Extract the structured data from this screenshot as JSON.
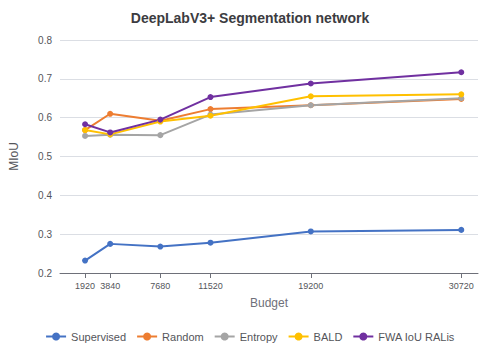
{
  "chart_data": {
    "type": "line",
    "title": "DeepLabV3+ Segmentation network",
    "x_label": "Budget",
    "y_label": "MIoU",
    "x": [
      1920,
      3840,
      7680,
      11520,
      19200,
      30720
    ],
    "series": [
      {
        "name": "Supervised",
        "color": "#4472C4",
        "marker": "circle",
        "values": [
          0.232,
          0.275,
          0.268,
          0.278,
          0.307,
          0.311
        ]
      },
      {
        "name": "Random",
        "color": "#ED7D31",
        "marker": "circle",
        "values": [
          0.568,
          0.61,
          0.592,
          0.622,
          0.632,
          0.648
        ]
      },
      {
        "name": "Entropy",
        "color": "#A5A5A5",
        "marker": "circle",
        "values": [
          0.553,
          0.556,
          0.555,
          0.608,
          0.632,
          0.65
        ]
      },
      {
        "name": "BALD",
        "color": "#FFC000",
        "marker": "circle",
        "values": [
          0.568,
          0.557,
          0.59,
          0.605,
          0.655,
          0.66
        ]
      },
      {
        "name": "FWA IoU RALis",
        "color": "#7030A0",
        "marker": "circle",
        "values": [
          0.583,
          0.562,
          0.595,
          0.653,
          0.688,
          0.717
        ]
      }
    ],
    "xlim": [
      0,
      32000
    ],
    "xticks": [
      1920,
      3840,
      7680,
      11520,
      19200,
      30720
    ],
    "ylim": [
      0.2,
      0.8
    ],
    "yticks": [
      0.2,
      0.3,
      0.4,
      0.5,
      0.6,
      0.7,
      0.8
    ],
    "grid": "y",
    "legend": "bottom"
  }
}
